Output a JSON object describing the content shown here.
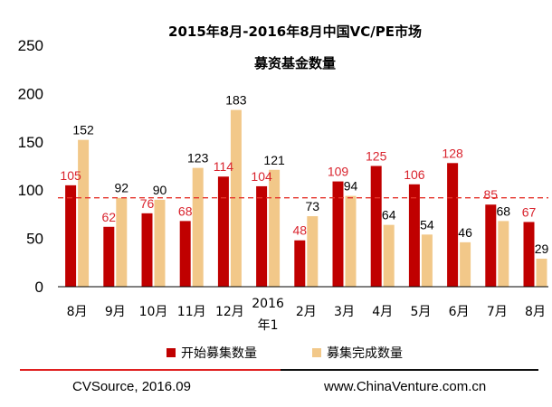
{
  "chart_data": {
    "type": "bar",
    "title": "2015年8月-2016年8月中国VC/PE市场",
    "subtitle": "募资基金数量",
    "categories": [
      "8月",
      "9月",
      "10月",
      "11月",
      "12月",
      "2016年1",
      "2月",
      "3月",
      "4月",
      "5月",
      "6月",
      "7月",
      "8月"
    ],
    "series": [
      {
        "name": "开始募集数量",
        "values": [
          105,
          62,
          76,
          68,
          114,
          104,
          48,
          109,
          125,
          106,
          128,
          85,
          67
        ],
        "color": "#c00000"
      },
      {
        "name": "募集完成数量",
        "values": [
          152,
          92,
          90,
          123,
          183,
          121,
          73,
          94,
          64,
          54,
          46,
          68,
          29
        ],
        "color": "#f2c889"
      }
    ],
    "ylim": [
      0,
      250
    ],
    "yticks": [
      0,
      50,
      100,
      150,
      200,
      250
    ],
    "xlabel": "",
    "ylabel": "",
    "reference_line": {
      "style": "dashed",
      "color": "#e5332a"
    },
    "legend_position": "bottom",
    "grid": false
  },
  "footer": {
    "source": "CVSource, 2016.09",
    "website": "www.ChinaVenture.com.cn"
  },
  "colors": {
    "divider_red": "#e02020",
    "divider_black": "#111111"
  }
}
